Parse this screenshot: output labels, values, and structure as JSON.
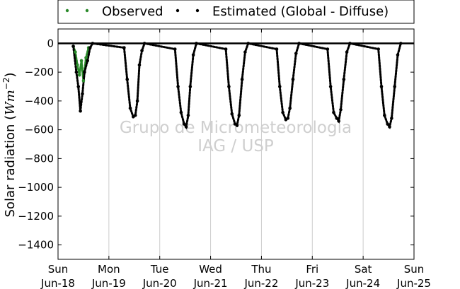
{
  "chart_data": {
    "type": "scatter",
    "title": "",
    "ylabel": "Solar radiation (",
    "ylabel_unit": "Wm",
    "ylabel_exp": "−2",
    "ylabel_close": ")",
    "ylim": [
      -1500,
      100
    ],
    "yticks": [
      0,
      -200,
      -400,
      -600,
      -800,
      -1000,
      -1200,
      -1400
    ],
    "xlim": [
      0,
      7
    ],
    "xticks": [
      {
        "x": 0,
        "day": "Sun",
        "date": "Jun-18"
      },
      {
        "x": 1,
        "day": "Mon",
        "date": "Jun-19"
      },
      {
        "x": 2,
        "day": "Tue",
        "date": "Jun-20"
      },
      {
        "x": 3,
        "day": "Wed",
        "date": "Jun-21"
      },
      {
        "x": 4,
        "day": "Thu",
        "date": "Jun-22"
      },
      {
        "x": 5,
        "day": "Fri",
        "date": "Jun-23"
      },
      {
        "x": 6,
        "day": "Sat",
        "date": "Jun-24"
      },
      {
        "x": 7,
        "day": "Sun",
        "date": "Jun-25"
      }
    ],
    "grid": "vertical",
    "legend_position": "top",
    "watermark": [
      "Grupo de Micrometeorologia",
      "IAG / USP"
    ],
    "series": [
      {
        "name": "Observed",
        "color": "#2a8a2a",
        "x": [
          0.3,
          0.34,
          0.38,
          0.42,
          0.46,
          0.5,
          0.55,
          0.6
        ],
        "y": [
          -20,
          -60,
          -150,
          -220,
          -120,
          -260,
          -100,
          -30
        ]
      },
      {
        "name": "Estimated (Global - Diffuse)",
        "color": "#000000",
        "x": [
          0.3,
          0.36,
          0.4,
          0.44,
          0.48,
          0.52,
          0.58,
          0.63,
          0.68,
          1.3,
          1.36,
          1.42,
          1.48,
          1.52,
          1.56,
          1.6,
          1.65,
          1.7,
          2.3,
          2.36,
          2.42,
          2.48,
          2.52,
          2.56,
          2.6,
          2.66,
          2.72,
          3.3,
          3.36,
          3.42,
          3.48,
          3.52,
          3.56,
          3.62,
          3.68,
          3.74,
          4.3,
          4.36,
          4.42,
          4.48,
          4.52,
          4.56,
          4.62,
          4.68,
          4.74,
          5.3,
          5.36,
          5.42,
          5.48,
          5.52,
          5.56,
          5.62,
          5.68,
          5.74,
          6.3,
          6.36,
          6.42,
          6.48,
          6.52,
          6.56,
          6.62,
          6.68,
          6.74
        ],
        "y": [
          -20,
          -200,
          -300,
          -470,
          -350,
          -200,
          -120,
          -30,
          0,
          -30,
          -250,
          -450,
          -510,
          -500,
          -400,
          -150,
          -50,
          0,
          -40,
          -300,
          -480,
          -560,
          -580,
          -500,
          -300,
          -80,
          0,
          -40,
          -300,
          -490,
          -560,
          -570,
          -500,
          -250,
          -60,
          0,
          -40,
          -300,
          -480,
          -530,
          -520,
          -450,
          -250,
          -70,
          0,
          -40,
          -300,
          -480,
          -520,
          -540,
          -460,
          -250,
          -60,
          0,
          -40,
          -300,
          -500,
          -560,
          -580,
          -520,
          -300,
          -80,
          0
        ]
      }
    ]
  }
}
